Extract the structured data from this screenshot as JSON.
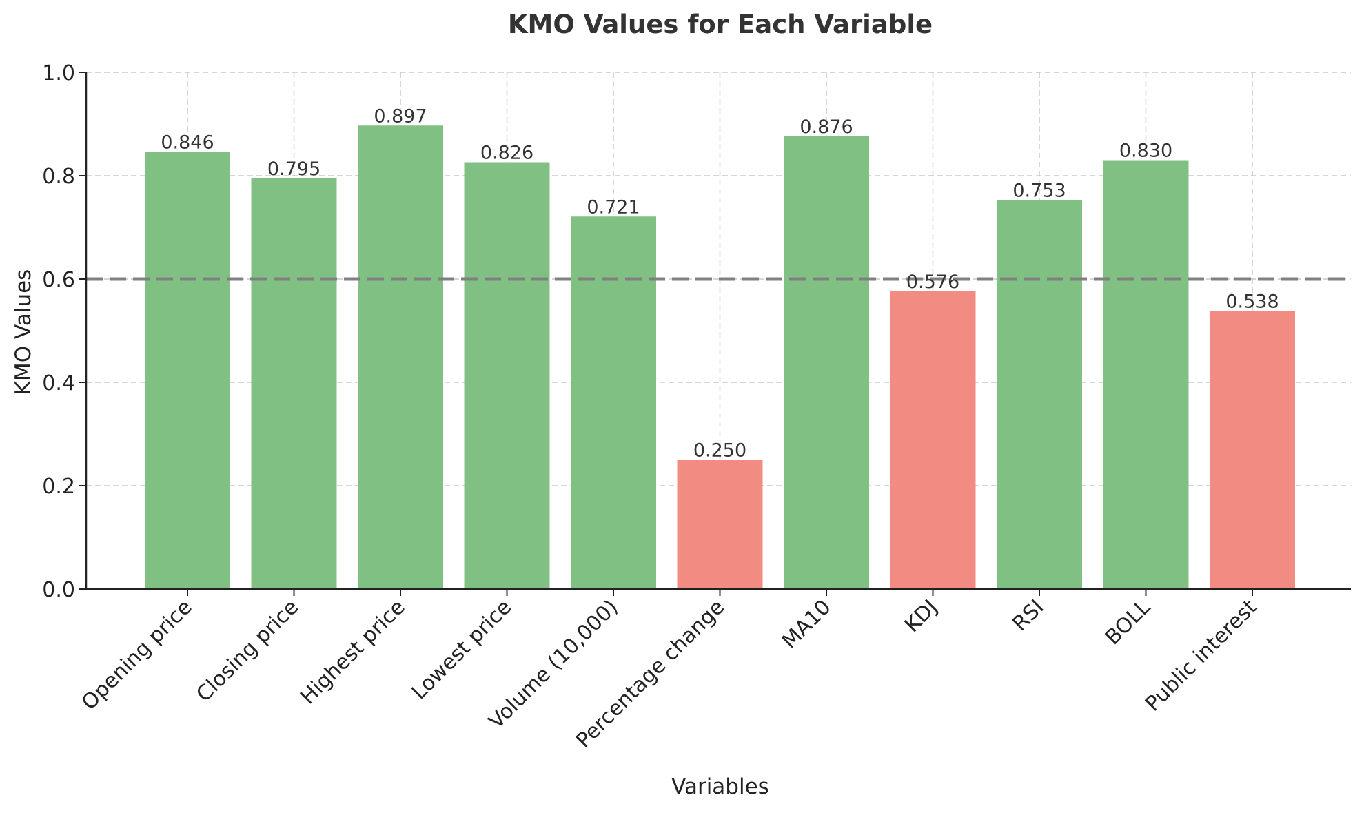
{
  "chart_data": {
    "type": "bar",
    "title": "KMO Values for Each Variable",
    "xlabel": "Variables",
    "ylabel": "KMO Values",
    "ylim": [
      0,
      1.0
    ],
    "yticks": [
      "0.0",
      "0.2",
      "0.4",
      "0.6",
      "0.8",
      "1.0"
    ],
    "threshold": 0.6,
    "grid": true,
    "categories": [
      "Opening price",
      "Closing price",
      "Highest price",
      "Lowest price",
      "Volume (10,000)",
      "Percentage change",
      "MA10",
      "KDJ",
      "RSI",
      "BOLL",
      "Public interest"
    ],
    "values": [
      0.846,
      0.795,
      0.897,
      0.826,
      0.721,
      0.25,
      0.876,
      0.576,
      0.753,
      0.83,
      0.538
    ],
    "value_labels": [
      "0.846",
      "0.795",
      "0.897",
      "0.826",
      "0.721",
      "0.250",
      "0.876",
      "0.576",
      "0.753",
      "0.830",
      "0.538"
    ],
    "colors": {
      "above_threshold": "#81c083",
      "below_threshold": "#f28b82",
      "threshold_line": "#808080"
    }
  }
}
